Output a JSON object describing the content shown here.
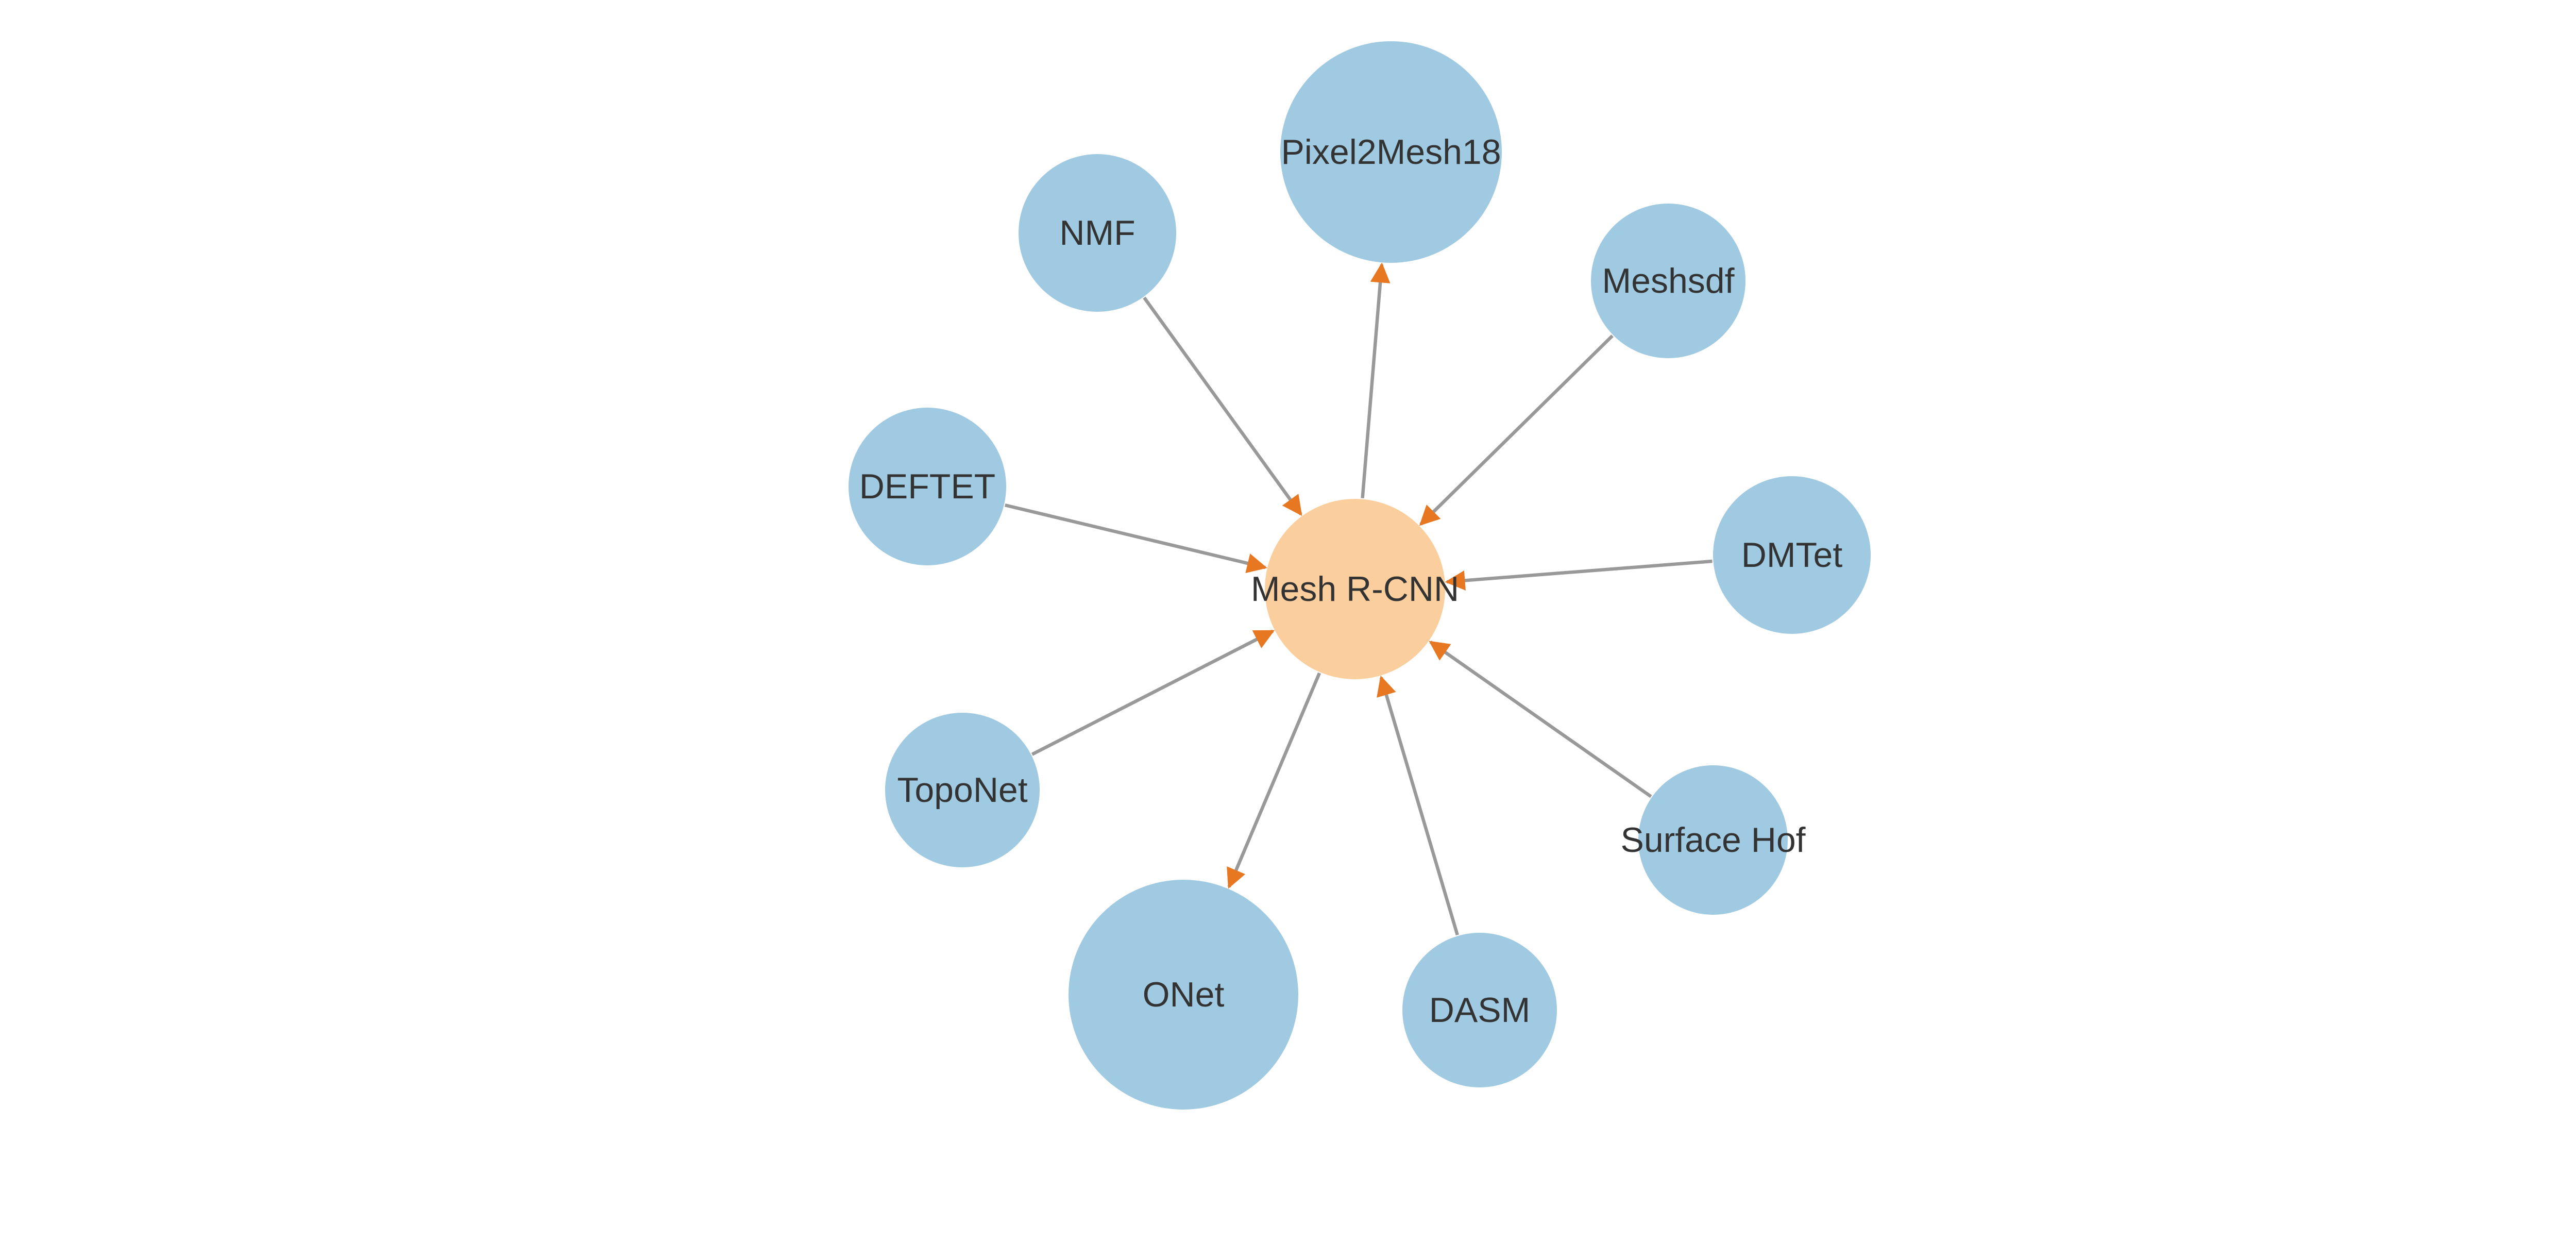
{
  "colors": {
    "center_node": "#FBCF9D",
    "outer_node": "#A0CAE1",
    "edge": "#999999",
    "arrowhead": "#E87722",
    "label": "#333333"
  },
  "nodes": [
    {
      "id": "center",
      "label": "Mesh R-CNN",
      "role": "center"
    },
    {
      "id": "pixel2mesh18",
      "label": "Pixel2Mesh18",
      "role": "outer"
    },
    {
      "id": "nmf",
      "label": "NMF",
      "role": "outer"
    },
    {
      "id": "meshsdf",
      "label": "Meshsdf",
      "role": "outer"
    },
    {
      "id": "deftet",
      "label": "DEFTET",
      "role": "outer"
    },
    {
      "id": "dmtet",
      "label": "DMTet",
      "role": "outer"
    },
    {
      "id": "toponet",
      "label": "TopoNet",
      "role": "outer"
    },
    {
      "id": "surfacehof",
      "label": "Surface Hof",
      "role": "outer"
    },
    {
      "id": "onet",
      "label": "ONet",
      "role": "outer"
    },
    {
      "id": "dasm",
      "label": "DASM",
      "role": "outer"
    }
  ],
  "edges": [
    {
      "from": "center",
      "to": "pixel2mesh18"
    },
    {
      "from": "nmf",
      "to": "center"
    },
    {
      "from": "meshsdf",
      "to": "center"
    },
    {
      "from": "deftet",
      "to": "center"
    },
    {
      "from": "dmtet",
      "to": "center"
    },
    {
      "from": "toponet",
      "to": "center"
    },
    {
      "from": "surfacehof",
      "to": "center"
    },
    {
      "from": "center",
      "to": "onet"
    },
    {
      "from": "dasm",
      "to": "center"
    }
  ]
}
